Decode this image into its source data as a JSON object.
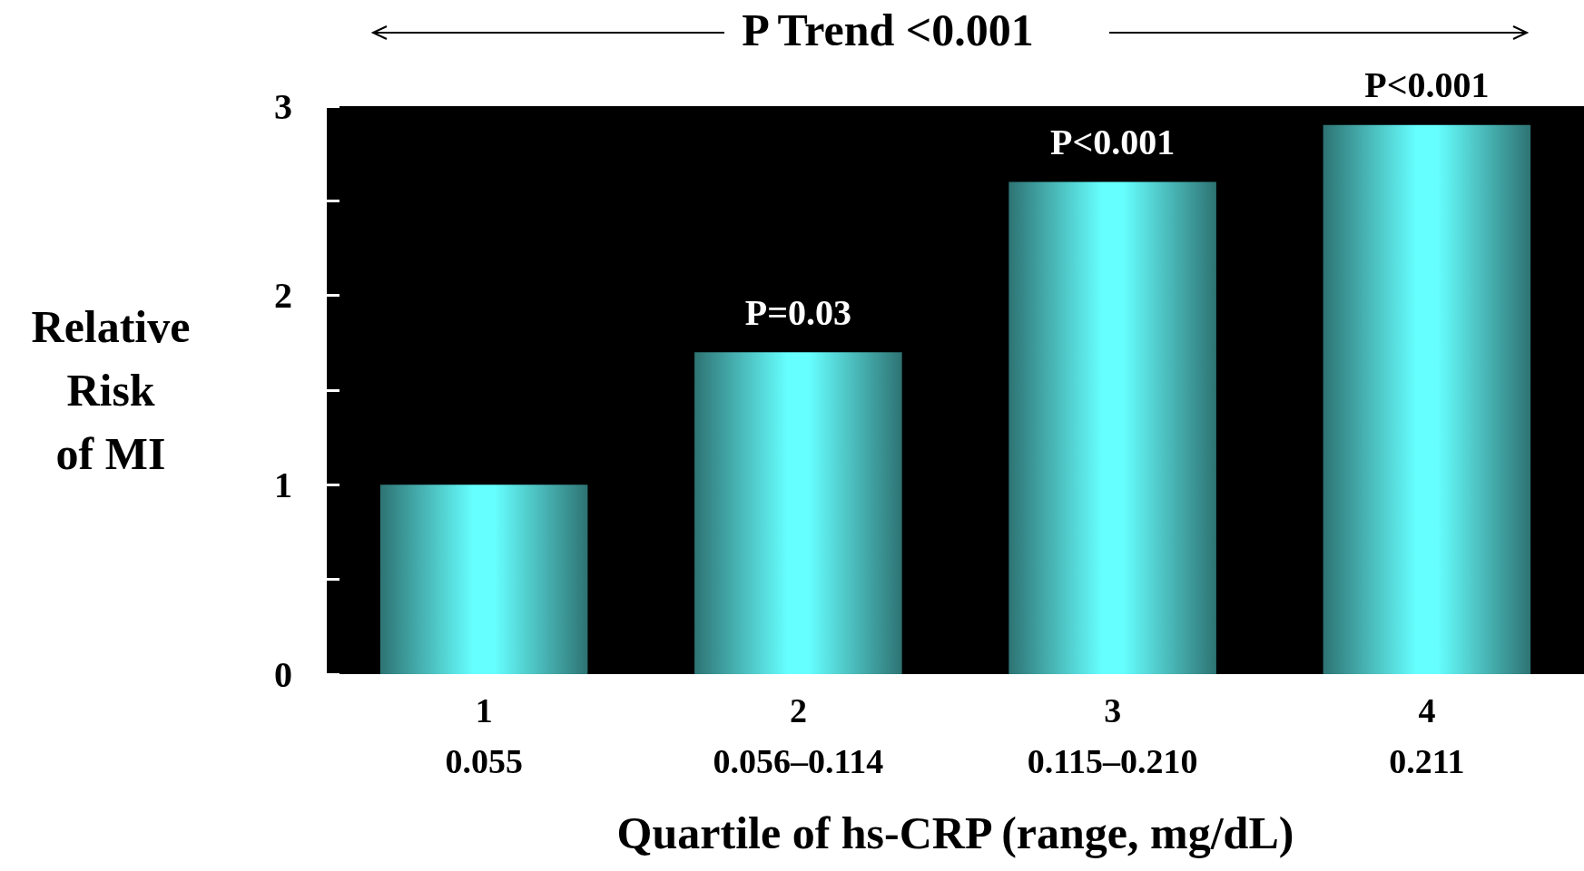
{
  "chart_data": {
    "type": "bar",
    "title": "P Trend <0.001",
    "categories": [
      "1\n0.055",
      "2\n0.056–0.114",
      "3\n0.115–0.210",
      "4\n0.211"
    ],
    "values": [
      1.0,
      1.7,
      2.6,
      2.9
    ],
    "color": "#66ffff",
    "ylim": [
      0,
      3
    ],
    "yticks": [
      0,
      {
        "value": 0.5,
        "label": null
      },
      1,
      {
        "value": 1.5,
        "label": null
      },
      2,
      {
        "value": 2.5,
        "label": null
      },
      3
    ],
    "xlabel": "Quartile of hs-CRP (range, mg/dL)",
    "ylabel": "Relative\nRisk\nof MI",
    "annotations": [
      {
        "text": "P=0.03",
        "x": "2\n0.056–0.114",
        "y": 1.7
      },
      {
        "text": "P<0.001",
        "x": "3\n0.115–0.210",
        "y": 2.6
      },
      {
        "text": "P<0.001",
        "x": "4\n0.211",
        "y": 2.9
      }
    ],
    "grid": false
  }
}
